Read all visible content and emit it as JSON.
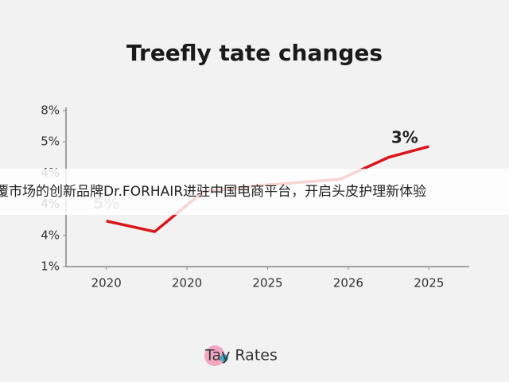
{
  "chart_data": {
    "type": "line",
    "title": "Treefly tate changes",
    "x": [
      0,
      0.6,
      1.2,
      1.9,
      2.9,
      3.5,
      4
    ],
    "series": [
      {
        "color": "#d9161b",
        "values": [
          1.46,
          1.12,
          2.4,
          2.6,
          2.8,
          3.5,
          3.85
        ]
      }
    ],
    "xlim": [
      -0.5,
      4.5
    ],
    "xticks": [
      {
        "value": 0,
        "label": "2020"
      },
      {
        "value": 1,
        "label": "2020"
      },
      {
        "value": 2,
        "label": "2025"
      },
      {
        "value": 3,
        "label": "2026"
      },
      {
        "value": 4,
        "label": "2025"
      }
    ],
    "ylim": [
      0,
      5.1
    ],
    "yticks": [
      {
        "value": 0,
        "label": "1%"
      },
      {
        "value": 1,
        "label": "4%"
      },
      {
        "value": 2,
        "label": "4%"
      },
      {
        "value": 3,
        "label": "4%"
      },
      {
        "value": 4,
        "label": "5%"
      },
      {
        "value": 5,
        "label": "8%"
      }
    ],
    "annotations": [
      {
        "text": "5%",
        "x": 0,
        "y": 2
      },
      {
        "text": "3%",
        "x": 3.7,
        "y": 4.1
      }
    ]
  },
  "banner": {
    "text": "覆市场的创新品牌Dr.FORHAIR进驻中国电商平台，开启头皮护理新体验"
  },
  "footer": {
    "logo_text": "Tay Rates"
  }
}
